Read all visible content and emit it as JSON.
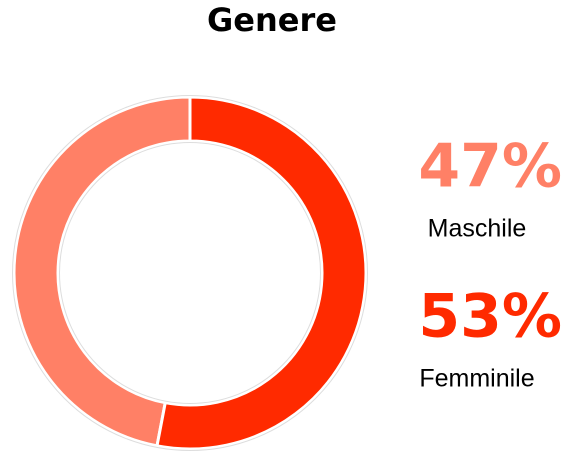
{
  "chart_data": {
    "type": "donut",
    "title": "Genere",
    "categories": [
      "Maschile",
      "Femminile"
    ],
    "values": [
      47,
      53
    ],
    "value_labels": [
      "47%",
      "53%"
    ],
    "colors": [
      "#ff8066",
      "#ff2a00"
    ]
  }
}
